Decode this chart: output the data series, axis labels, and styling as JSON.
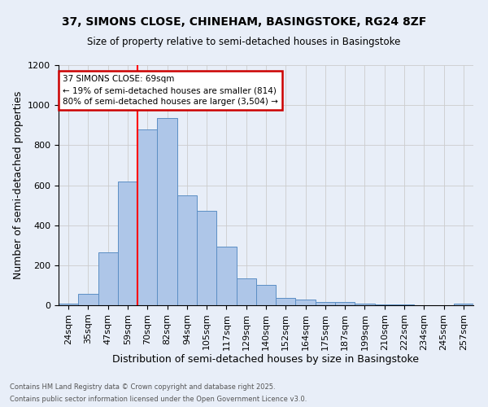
{
  "title_line1": "37, SIMONS CLOSE, CHINEHAM, BASINGSTOKE, RG24 8ZF",
  "title_line2": "Size of property relative to semi-detached houses in Basingstoke",
  "xlabel": "Distribution of semi-detached houses by size in Basingstoke",
  "ylabel": "Number of semi-detached properties",
  "footnote1": "Contains HM Land Registry data © Crown copyright and database right 2025.",
  "footnote2": "Contains public sector information licensed under the Open Government Licence v3.0.",
  "bin_labels": [
    "24sqm",
    "35sqm",
    "47sqm",
    "59sqm",
    "70sqm",
    "82sqm",
    "94sqm",
    "105sqm",
    "117sqm",
    "129sqm",
    "140sqm",
    "152sqm",
    "164sqm",
    "175sqm",
    "187sqm",
    "199sqm",
    "210sqm",
    "222sqm",
    "234sqm",
    "245sqm",
    "257sqm"
  ],
  "bar_values": [
    10,
    57,
    265,
    620,
    880,
    935,
    550,
    470,
    293,
    133,
    100,
    38,
    27,
    18,
    17,
    10,
    5,
    3,
    2,
    1,
    8
  ],
  "bar_color": "#aec6e8",
  "bar_edge_color": "#5b8ec4",
  "red_line_bin_index": 4,
  "annotation_title": "37 SIMONS CLOSE: 69sqm",
  "annotation_line1": "← 19% of semi-detached houses are smaller (814)",
  "annotation_line2": "80% of semi-detached houses are larger (3,504) →",
  "annotation_box_edgecolor": "#cc0000",
  "ylim": [
    0,
    1200
  ],
  "yticks": [
    0,
    200,
    400,
    600,
    800,
    1000,
    1200
  ],
  "background_color": "#e8eef8",
  "grid_color": "#cccccc",
  "fig_width": 6.0,
  "fig_height": 5.0,
  "dpi": 100
}
